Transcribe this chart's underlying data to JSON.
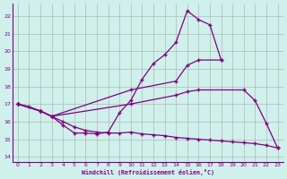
{
  "background_color": "#cff0eb",
  "line_color": "#800080",
  "grid_color": "#aaaaaa",
  "xlabel": "Windchill (Refroidissement éolien,°C)",
  "xlim": [
    -0.5,
    23.5
  ],
  "ylim": [
    13.7,
    22.7
  ],
  "yticks": [
    14,
    15,
    16,
    17,
    18,
    19,
    20,
    21,
    22
  ],
  "xticks": [
    0,
    1,
    2,
    3,
    4,
    5,
    6,
    7,
    8,
    9,
    10,
    11,
    12,
    13,
    14,
    15,
    16,
    17,
    18,
    19,
    20,
    21,
    22,
    23
  ],
  "line1_x": [
    0,
    1,
    2,
    3,
    4,
    5,
    6,
    7,
    8,
    9,
    10,
    11,
    12,
    13,
    14,
    15,
    16,
    17,
    18
  ],
  "line1_y": [
    17.0,
    16.85,
    16.6,
    16.3,
    15.8,
    15.35,
    15.35,
    15.3,
    15.4,
    16.5,
    17.2,
    18.4,
    19.3,
    19.8,
    20.5,
    22.3,
    21.8,
    21.5,
    19.5
  ],
  "line2_x": [
    0,
    2,
    3,
    10,
    14,
    15,
    16,
    18
  ],
  "line2_y": [
    17.0,
    16.6,
    16.3,
    17.8,
    18.3,
    19.2,
    19.5,
    19.5
  ],
  "line3_x": [
    0,
    2,
    3,
    10,
    14,
    15,
    16,
    20,
    21,
    22,
    23
  ],
  "line3_y": [
    17.0,
    16.6,
    16.3,
    17.0,
    17.5,
    17.7,
    17.8,
    17.8,
    17.2,
    15.9,
    14.5
  ],
  "line4_x": [
    0,
    2,
    3,
    4,
    5,
    6,
    7,
    8,
    9,
    10,
    11,
    12,
    13,
    14,
    15,
    16,
    17,
    18,
    19,
    20,
    21,
    22,
    23
  ],
  "line4_y": [
    17.0,
    16.6,
    16.3,
    16.0,
    15.7,
    15.5,
    15.4,
    15.35,
    15.35,
    15.4,
    15.3,
    15.25,
    15.2,
    15.1,
    15.05,
    15.0,
    14.95,
    14.9,
    14.85,
    14.8,
    14.75,
    14.65,
    14.5
  ]
}
